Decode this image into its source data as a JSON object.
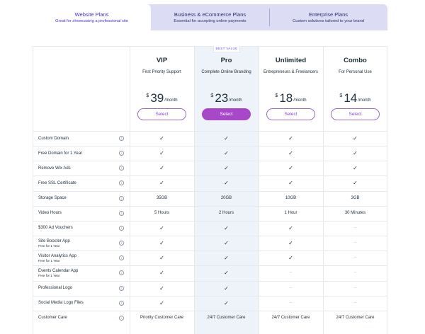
{
  "tabs": [
    {
      "title": "Website Plans",
      "subtitle": "Great for showcasing a professional site",
      "active": true
    },
    {
      "title": "Business & eCommerce Plans",
      "subtitle": "Essential for accepting online payments",
      "active": false
    },
    {
      "title": "Enterprise Plans",
      "subtitle": "Custom solutions tailored to your brand",
      "active": false
    }
  ],
  "best_value_badge": "BEST VALUE",
  "plans": [
    {
      "name": "VIP",
      "description": "First Priority Support",
      "currency": "$",
      "price": "39",
      "period": "/month",
      "select_label": "Select"
    },
    {
      "name": "Pro",
      "description": "Complete Online Branding",
      "currency": "$",
      "price": "23",
      "period": "/month",
      "select_label": "Select"
    },
    {
      "name": "Unlimited",
      "description": "Entrepreneurs & Freelancers",
      "currency": "$",
      "price": "18",
      "period": "/month",
      "select_label": "Select"
    },
    {
      "name": "Combo",
      "description": "For Personal Use",
      "currency": "$",
      "price": "14",
      "period": "/month",
      "select_label": "Select"
    }
  ],
  "features": [
    {
      "label": "Custom Domain",
      "sub": "",
      "values": [
        "✓",
        "✓",
        "✓",
        "✓"
      ]
    },
    {
      "label": "Free Domain for 1 Year",
      "sub": "",
      "values": [
        "✓",
        "✓",
        "✓",
        "✓"
      ]
    },
    {
      "label": "Remove Wix Ads",
      "sub": "",
      "values": [
        "✓",
        "✓",
        "✓",
        "✓"
      ]
    },
    {
      "label": "Free SSL Certificate",
      "sub": "",
      "values": [
        "✓",
        "✓",
        "✓",
        "✓"
      ]
    },
    {
      "label": "Storage Space",
      "sub": "",
      "values": [
        "35GB",
        "20GB",
        "10GB",
        "3GB"
      ]
    },
    {
      "label": "Video Hours",
      "sub": "",
      "values": [
        "5 Hours",
        "2 Hours",
        "1 Hour",
        "30 Minutes"
      ]
    },
    {
      "label": "$300 Ad Vouchers",
      "sub": "",
      "values": [
        "✓",
        "✓",
        "✓",
        "–"
      ]
    },
    {
      "label": "Site Booster App",
      "sub": "Free for 1 Year",
      "values": [
        "✓",
        "✓",
        "✓",
        "–"
      ]
    },
    {
      "label": "Visitor Analytics App",
      "sub": "Free for 1 Year",
      "values": [
        "✓",
        "✓",
        "✓",
        "–"
      ]
    },
    {
      "label": "Events Calendar App",
      "sub": "Free for 1 Year",
      "values": [
        "✓",
        "✓",
        "–",
        "–"
      ]
    },
    {
      "label": "Professional Logo",
      "sub": "",
      "values": [
        "✓",
        "✓",
        "–",
        "–"
      ]
    },
    {
      "label": "Social Media Logo Files",
      "sub": "",
      "values": [
        "✓",
        "✓",
        "–",
        "–"
      ]
    },
    {
      "label": "Customer Care",
      "sub": "",
      "values": [
        "Priority Customer Care",
        "24/7 Customer Care",
        "24/7 Customer Care",
        "24/7 Customer Care"
      ]
    }
  ],
  "info_icon_glyph": "i",
  "colors": {
    "accent": "#a847c8",
    "tab_active_text": "#3f2fdb",
    "tab_bg": "#dcdcf5"
  }
}
